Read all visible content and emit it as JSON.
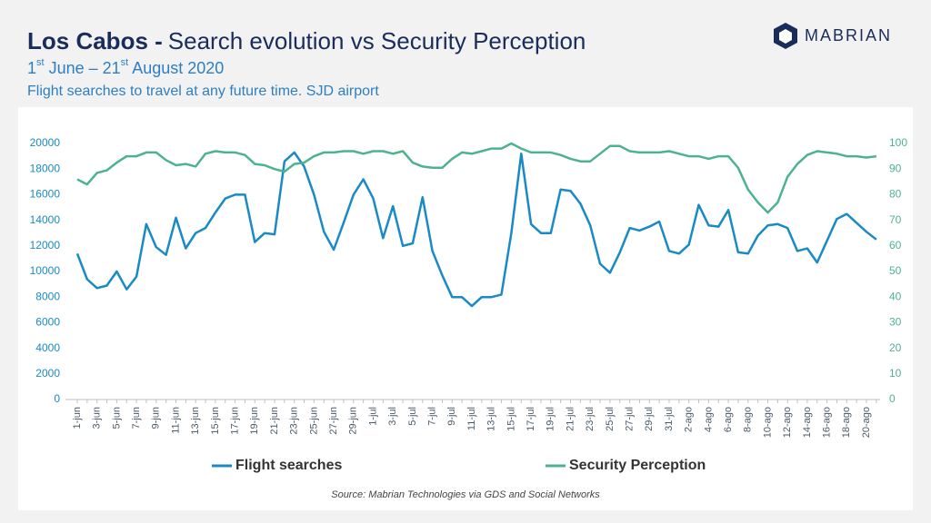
{
  "chart_data": {
    "type": "line",
    "title_place": "Los Cabos -",
    "title": "Search evolution vs Security Perception",
    "subtitle": "1st June – 21st August 2020",
    "description": "Flight searches to travel at any future time. SJD airport",
    "brand": "MABRIAN",
    "source": "Source: Mabrian Technologies via GDS and Social Networks",
    "categories": [
      "1-jun",
      null,
      "3-jun",
      null,
      "5-jun",
      null,
      "7-jun",
      null,
      "9-jun",
      null,
      "11-jun",
      null,
      "13-jun",
      null,
      "15-jun",
      null,
      "17-jun",
      null,
      "19-jun",
      null,
      "21-jun",
      null,
      "23-jun",
      null,
      "25-jun",
      null,
      "27-jun",
      null,
      "29-jun",
      null,
      "1-jul",
      null,
      "3-jul",
      null,
      "5-jul",
      null,
      "7-jul",
      null,
      "9-jul",
      null,
      "11-jul",
      null,
      "13-jul",
      null,
      "15-jul",
      null,
      "17-jul",
      null,
      "19-jul",
      null,
      "21-jul",
      null,
      "23-jul",
      null,
      "25-jul",
      null,
      "27-jul",
      null,
      "29-jul",
      null,
      "31-jul",
      null,
      "2-ago",
      null,
      "4-ago",
      null,
      "6-ago",
      null,
      "8-ago",
      null,
      "10-ago",
      null,
      "12-ago",
      null,
      "14-ago",
      null,
      "16-ago",
      null,
      "18-ago",
      null,
      "20-ago",
      null
    ],
    "series": [
      {
        "name": "Flight searches",
        "color": "#1a8ac6",
        "axis": "y",
        "values": [
          11400,
          9400,
          8700,
          8900,
          10000,
          8600,
          9600,
          13700,
          11900,
          11300,
          14200,
          11800,
          13000,
          13400,
          14600,
          15700,
          16000,
          16000,
          12300,
          13000,
          12900,
          18600,
          19300,
          18200,
          16000,
          13100,
          11700,
          13800,
          16000,
          17200,
          15700,
          12600,
          15100,
          12000,
          12200,
          15800,
          11600,
          9700,
          8000,
          8000,
          7300,
          8000,
          8000,
          8200,
          13000,
          19200,
          13700,
          13000,
          13000,
          16400,
          16300,
          15300,
          13600,
          10600,
          9900,
          11500,
          13400,
          13200,
          13500,
          13900,
          11600,
          11400,
          12100,
          15200,
          13600,
          13500,
          14800,
          11500,
          11400,
          12800,
          13600,
          13700,
          13400,
          11600,
          11800,
          10700,
          12400,
          14100,
          14500,
          13800,
          13100,
          12500
        ]
      },
      {
        "name": "Security Perception",
        "color": "#4db38c",
        "axis": "y2",
        "values": [
          86,
          84,
          88.5,
          89.5,
          92.5,
          95,
          95,
          96.5,
          96.5,
          93.5,
          91.5,
          92,
          91,
          96,
          97,
          96.5,
          96.5,
          95.5,
          92,
          91.5,
          90,
          89,
          92,
          92.5,
          95,
          96.5,
          96.5,
          97,
          97,
          96,
          97,
          97,
          96,
          97,
          92.5,
          91,
          90.5,
          90.5,
          94,
          96.5,
          96,
          97,
          98,
          98,
          100,
          98,
          96.5,
          96.5,
          96.5,
          95.5,
          94,
          93,
          93,
          96,
          99,
          99,
          97,
          96.5,
          96.5,
          96.5,
          97,
          96,
          95,
          95,
          94,
          95,
          95,
          90.5,
          82,
          77,
          73,
          77,
          87,
          92,
          95.5,
          97,
          96.5,
          96,
          95,
          95,
          94.5,
          95
        ]
      }
    ],
    "ylim": [
      0,
      20000
    ],
    "yticks": [
      0,
      2000,
      4000,
      6000,
      8000,
      10000,
      12000,
      14000,
      16000,
      18000,
      20000
    ],
    "y2lim": [
      0,
      100
    ],
    "y2ticks": [
      0,
      10,
      20,
      30,
      40,
      50,
      60,
      70,
      80,
      90,
      100
    ],
    "grid": false
  }
}
